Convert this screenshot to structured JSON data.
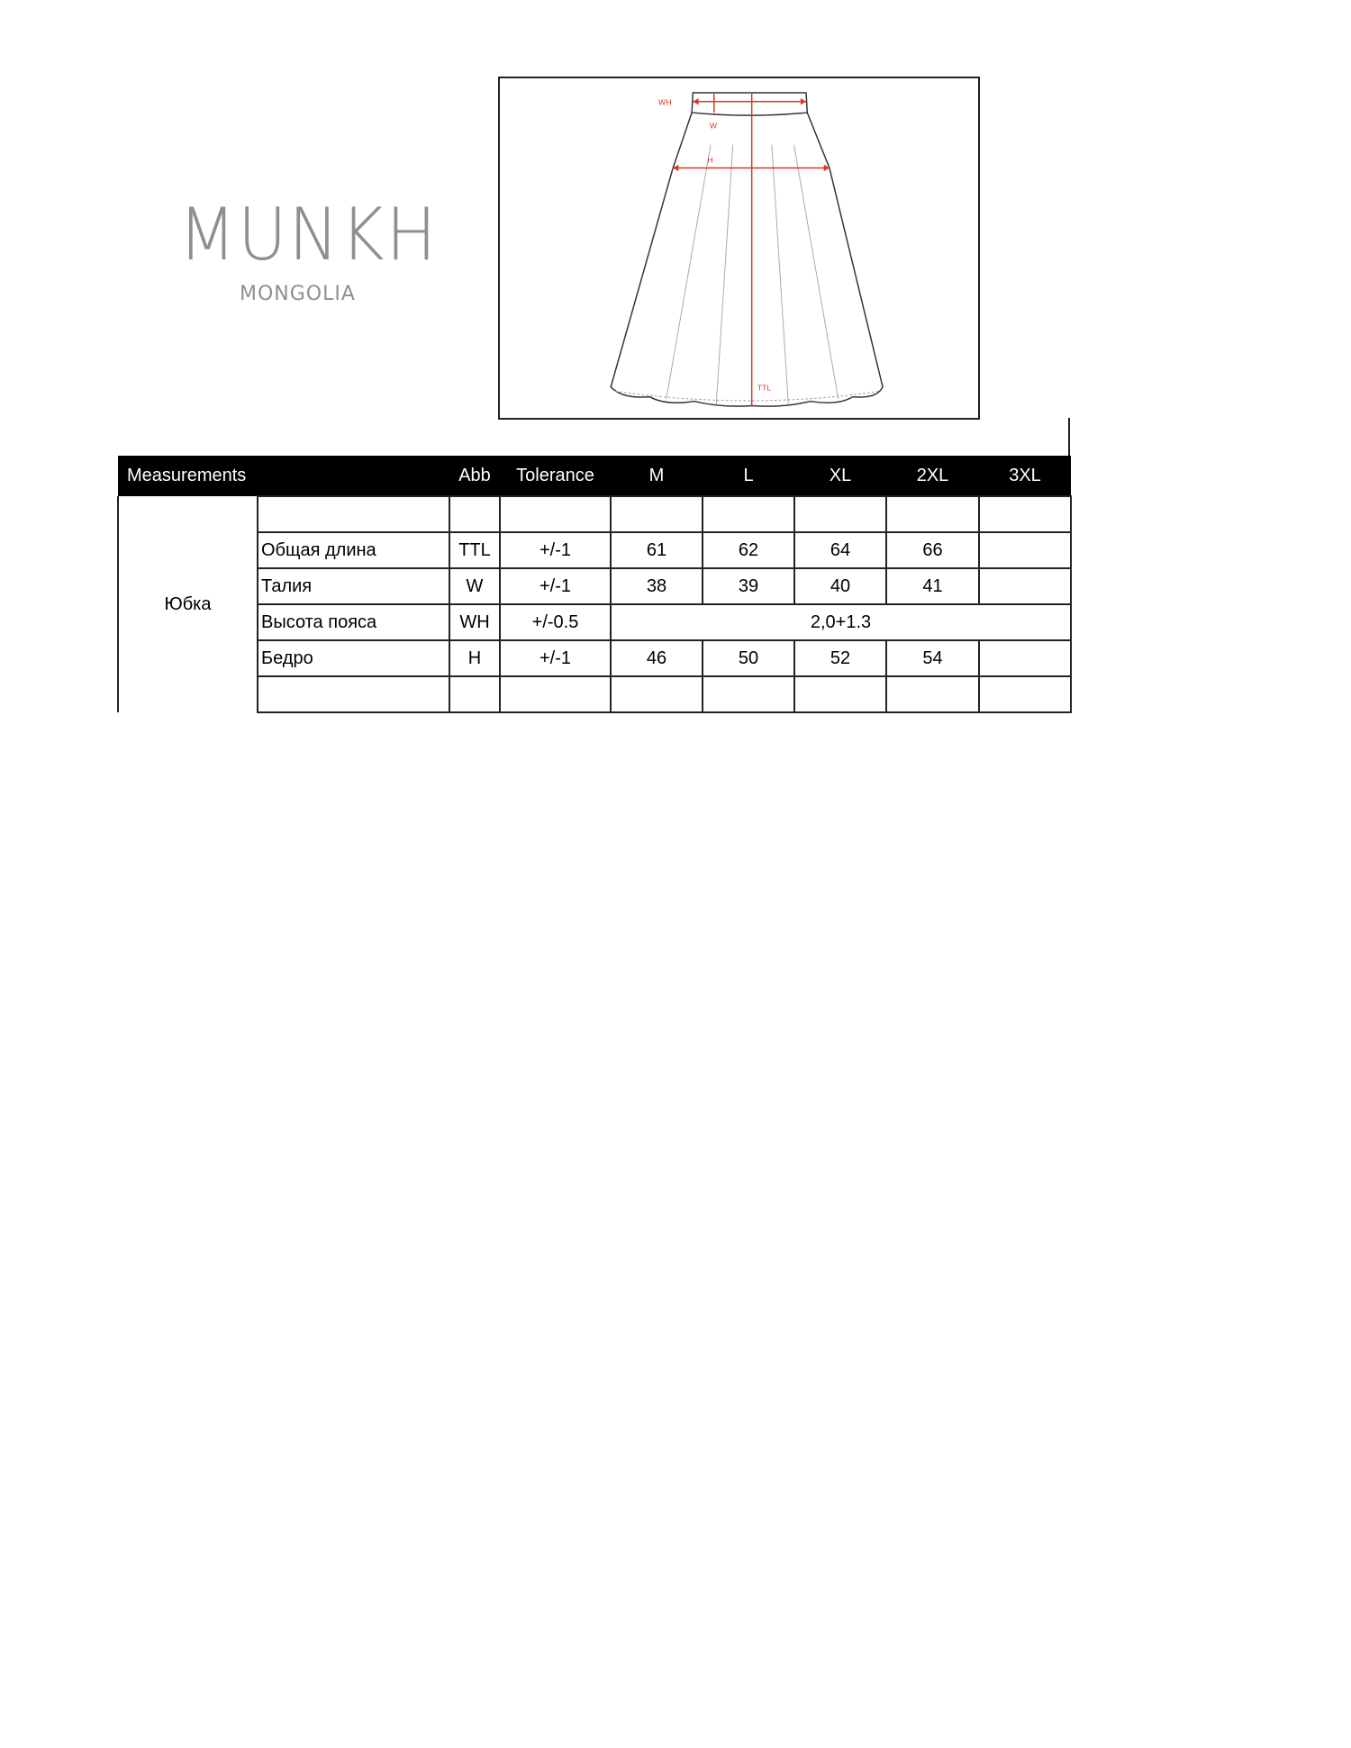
{
  "logo": {
    "name": "MUNKH",
    "subtitle": "MONGOLIA"
  },
  "sketch": {
    "labels": {
      "wh": "WH",
      "w": "W",
      "h": "H",
      "ttl": "TTL"
    },
    "measure_color": "#d9381e"
  },
  "table": {
    "headers": [
      "Measurements",
      "Abb",
      "Tolerance",
      "M",
      "L",
      "XL",
      "2XL",
      "3XL"
    ],
    "group": "Юбка",
    "rows": [
      {
        "name": "",
        "abb": "",
        "tol": "",
        "values": [
          "",
          "",
          "",
          "",
          ""
        ]
      },
      {
        "name": "Общая длина",
        "abb": "TTL",
        "tol": "+/-1",
        "values": [
          "61",
          "62",
          "64",
          "66",
          ""
        ]
      },
      {
        "name": "Талия",
        "abb": "W",
        "tol": "+/-1",
        "values": [
          "38",
          "39",
          "40",
          "41",
          ""
        ]
      },
      {
        "name": "Высота пояса",
        "abb": "WH",
        "tol": "+/-0.5",
        "merged": "2,0+1.3"
      },
      {
        "name": "Бедро",
        "abb": "H",
        "tol": "+/-1",
        "values": [
          "46",
          "50",
          "52",
          "54",
          ""
        ]
      },
      {
        "name": "",
        "abb": "",
        "tol": "",
        "values": [
          "",
          "",
          "",
          "",
          ""
        ]
      }
    ]
  }
}
